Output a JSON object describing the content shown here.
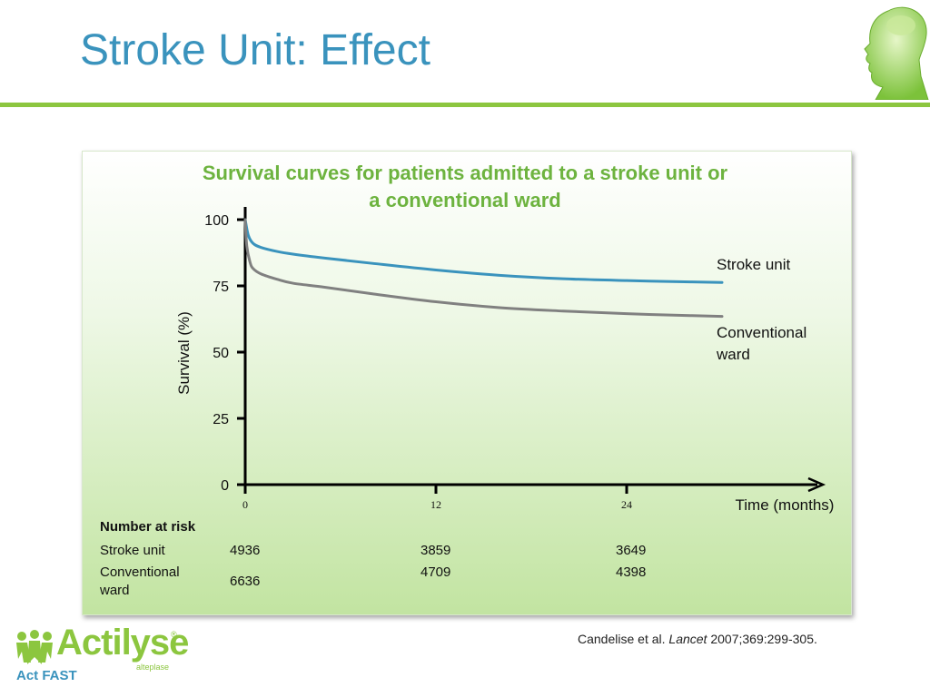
{
  "slide": {
    "title": "Stroke Unit: Effect",
    "citation_authors": "Candelise et al.",
    "citation_journal": "Lancet",
    "citation_ref": "2007;369:299-305."
  },
  "logo": {
    "brand": "Actilyse",
    "sub": "alteplase",
    "reg": "®",
    "tagline": "Act FAST"
  },
  "colors": {
    "title": "#3a93bd",
    "accent_green": "#8cc63f",
    "chart_title": "#6db33f",
    "stroke_unit_line": "#3a93bd",
    "conventional_line": "#808080"
  },
  "chart_data": {
    "type": "line",
    "title_line1": "Survival curves for patients admitted to a stroke unit or",
    "title_line2": "a conventional ward",
    "ylabel": "Survival (%)",
    "xlabel": "Time (months)",
    "ylim": [
      0,
      100
    ],
    "xlim": [
      0,
      30
    ],
    "yticks": [
      "0",
      "25",
      "50",
      "75",
      "100"
    ],
    "xticks": [
      "0",
      "12",
      "24"
    ],
    "grid": false,
    "series": [
      {
        "name": "Stroke unit",
        "color": "#3a93bd",
        "x": [
          0,
          0.2,
          0.5,
          1,
          2,
          3,
          5,
          8,
          12,
          16,
          20,
          24,
          28,
          30
        ],
        "y": [
          100,
          94,
          91,
          89.5,
          88,
          87,
          85.5,
          83.5,
          81,
          79,
          77.7,
          77,
          76.5,
          76.3
        ]
      },
      {
        "name_line1": "Conventional",
        "name_line2": "ward",
        "color": "#808080",
        "x": [
          0,
          0.1,
          0.3,
          0.5,
          1,
          2,
          3,
          5,
          8,
          12,
          16,
          20,
          24,
          28,
          30
        ],
        "y": [
          100,
          90,
          84,
          81.5,
          79.5,
          77.5,
          76,
          74.5,
          72,
          69,
          66.8,
          65.5,
          64.5,
          63.8,
          63.5
        ]
      }
    ]
  },
  "risk_table": {
    "heading": "Number at risk",
    "rows": [
      {
        "label_line1": "Stroke unit",
        "label_line2": "",
        "values": [
          "4936",
          "3859",
          "3649"
        ]
      },
      {
        "label_line1": "Conventional",
        "label_line2": "ward",
        "values": [
          "6636",
          "4709",
          "4398"
        ]
      }
    ]
  }
}
